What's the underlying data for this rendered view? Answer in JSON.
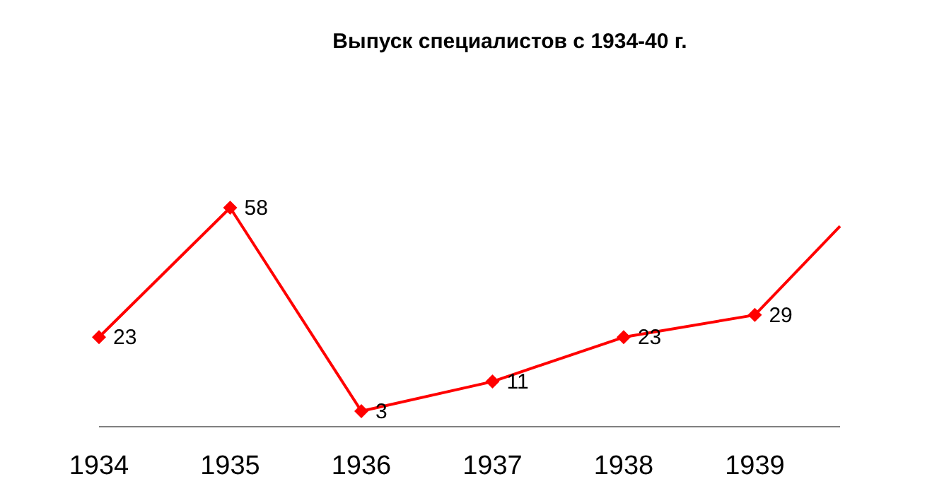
{
  "chart_data": {
    "type": "line",
    "title": "Выпуск специалистов с 1934-40 г.",
    "x": [
      1934,
      1935,
      1936,
      1937,
      1938,
      1939,
      1939.65
    ],
    "series": [
      {
        "color": "#ff0000",
        "values": [
          23,
          58,
          3,
          11,
          23,
          29,
          53
        ],
        "value_labels": [
          "23",
          "58",
          "3",
          "11",
          "23",
          "29",
          null
        ]
      }
    ],
    "xlim": [
      1934,
      1939.65
    ],
    "xticks": [
      1934,
      1935,
      1936,
      1937,
      1938,
      1939
    ],
    "tick_labels": "x",
    "marker": "diamond",
    "grid": false,
    "legend": false
  }
}
